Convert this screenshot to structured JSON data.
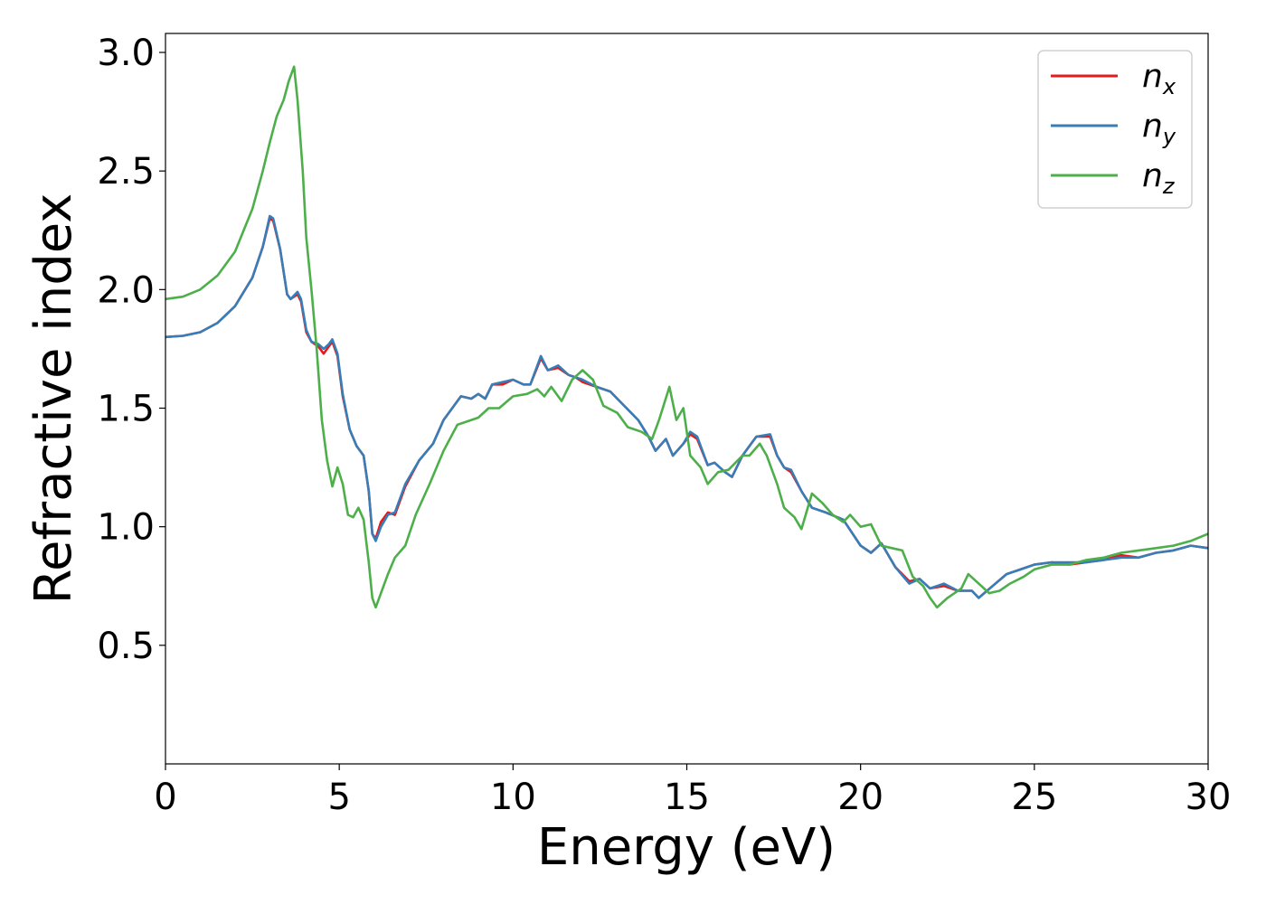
{
  "chart_data": {
    "type": "line",
    "title": "",
    "xlabel": "Energy (eV)",
    "ylabel": "Refractive index",
    "xlim": [
      0,
      30
    ],
    "ylim": [
      0.0,
      3.08
    ],
    "xticks": [
      0,
      5,
      10,
      15,
      20,
      25,
      30
    ],
    "xtick_labels": [
      "0",
      "5",
      "10",
      "15",
      "20",
      "25",
      "30"
    ],
    "yticks": [
      0.5,
      1.0,
      1.5,
      2.0,
      2.5,
      3.0
    ],
    "ytick_labels": [
      "0.5",
      "1.0",
      "1.5",
      "2.0",
      "2.5",
      "3.0"
    ],
    "grid": false,
    "legend_position": "top-right",
    "series": [
      {
        "name": "n",
        "subscript": "x",
        "color": "#e41a1c",
        "points": [
          [
            0,
            1.8
          ],
          [
            0.5,
            1.805
          ],
          [
            1.0,
            1.82
          ],
          [
            1.5,
            1.86
          ],
          [
            2.0,
            1.93
          ],
          [
            2.5,
            2.05
          ],
          [
            2.8,
            2.18
          ],
          [
            3.0,
            2.3
          ],
          [
            3.1,
            2.29
          ],
          [
            3.3,
            2.17
          ],
          [
            3.5,
            1.98
          ],
          [
            3.6,
            1.96
          ],
          [
            3.8,
            1.98
          ],
          [
            3.9,
            1.95
          ],
          [
            4.05,
            1.82
          ],
          [
            4.2,
            1.78
          ],
          [
            4.4,
            1.76
          ],
          [
            4.55,
            1.73
          ],
          [
            4.7,
            1.76
          ],
          [
            4.8,
            1.78
          ],
          [
            4.95,
            1.72
          ],
          [
            5.1,
            1.55
          ],
          [
            5.3,
            1.41
          ],
          [
            5.5,
            1.34
          ],
          [
            5.7,
            1.3
          ],
          [
            5.85,
            1.15
          ],
          [
            5.95,
            0.97
          ],
          [
            6.05,
            0.95
          ],
          [
            6.2,
            1.02
          ],
          [
            6.4,
            1.06
          ],
          [
            6.6,
            1.05
          ],
          [
            6.9,
            1.17
          ],
          [
            7.3,
            1.28
          ],
          [
            7.7,
            1.35
          ],
          [
            8.0,
            1.45
          ],
          [
            8.5,
            1.55
          ],
          [
            8.8,
            1.54
          ],
          [
            9.0,
            1.56
          ],
          [
            9.2,
            1.54
          ],
          [
            9.4,
            1.6
          ],
          [
            9.7,
            1.6
          ],
          [
            10.0,
            1.62
          ],
          [
            10.3,
            1.6
          ],
          [
            10.5,
            1.6
          ],
          [
            10.8,
            1.71
          ],
          [
            11.0,
            1.66
          ],
          [
            11.3,
            1.67
          ],
          [
            11.6,
            1.64
          ],
          [
            11.8,
            1.63
          ],
          [
            12.0,
            1.61
          ],
          [
            12.4,
            1.59
          ],
          [
            12.8,
            1.57
          ],
          [
            13.2,
            1.51
          ],
          [
            13.6,
            1.45
          ],
          [
            13.9,
            1.38
          ],
          [
            14.1,
            1.32
          ],
          [
            14.4,
            1.37
          ],
          [
            14.6,
            1.3
          ],
          [
            14.9,
            1.35
          ],
          [
            15.1,
            1.39
          ],
          [
            15.3,
            1.37
          ],
          [
            15.6,
            1.26
          ],
          [
            15.8,
            1.27
          ],
          [
            16.1,
            1.23
          ],
          [
            16.3,
            1.21
          ],
          [
            16.6,
            1.3
          ],
          [
            17.0,
            1.38
          ],
          [
            17.4,
            1.38
          ],
          [
            17.6,
            1.3
          ],
          [
            17.8,
            1.25
          ],
          [
            18.0,
            1.23
          ],
          [
            18.3,
            1.15
          ],
          [
            18.6,
            1.08
          ],
          [
            19.0,
            1.06
          ],
          [
            19.5,
            1.03
          ],
          [
            20.0,
            0.92
          ],
          [
            20.3,
            0.89
          ],
          [
            20.6,
            0.93
          ],
          [
            21.0,
            0.83
          ],
          [
            21.4,
            0.77
          ],
          [
            21.7,
            0.78
          ],
          [
            22.0,
            0.74
          ],
          [
            22.4,
            0.75
          ],
          [
            22.8,
            0.73
          ],
          [
            23.2,
            0.73
          ],
          [
            23.4,
            0.7
          ],
          [
            23.8,
            0.75
          ],
          [
            24.2,
            0.8
          ],
          [
            24.6,
            0.82
          ],
          [
            25.0,
            0.84
          ],
          [
            25.5,
            0.85
          ],
          [
            26.0,
            0.84
          ],
          [
            26.5,
            0.85
          ],
          [
            27.0,
            0.86
          ],
          [
            27.5,
            0.88
          ],
          [
            28.0,
            0.87
          ],
          [
            28.5,
            0.89
          ],
          [
            29.0,
            0.9
          ],
          [
            29.5,
            0.92
          ],
          [
            30.0,
            0.91
          ]
        ]
      },
      {
        "name": "n",
        "subscript": "y",
        "color": "#377eb8",
        "points": [
          [
            0,
            1.8
          ],
          [
            0.5,
            1.805
          ],
          [
            1.0,
            1.82
          ],
          [
            1.5,
            1.86
          ],
          [
            2.0,
            1.93
          ],
          [
            2.5,
            2.05
          ],
          [
            2.8,
            2.18
          ],
          [
            3.0,
            2.31
          ],
          [
            3.1,
            2.3
          ],
          [
            3.3,
            2.17
          ],
          [
            3.5,
            1.98
          ],
          [
            3.6,
            1.96
          ],
          [
            3.8,
            1.99
          ],
          [
            3.9,
            1.96
          ],
          [
            4.05,
            1.83
          ],
          [
            4.2,
            1.78
          ],
          [
            4.4,
            1.77
          ],
          [
            4.55,
            1.75
          ],
          [
            4.7,
            1.77
          ],
          [
            4.8,
            1.79
          ],
          [
            4.95,
            1.73
          ],
          [
            5.1,
            1.56
          ],
          [
            5.3,
            1.41
          ],
          [
            5.5,
            1.34
          ],
          [
            5.7,
            1.3
          ],
          [
            5.85,
            1.15
          ],
          [
            5.95,
            0.97
          ],
          [
            6.05,
            0.94
          ],
          [
            6.2,
            1.0
          ],
          [
            6.4,
            1.05
          ],
          [
            6.6,
            1.06
          ],
          [
            6.9,
            1.18
          ],
          [
            7.3,
            1.28
          ],
          [
            7.7,
            1.35
          ],
          [
            8.0,
            1.45
          ],
          [
            8.5,
            1.55
          ],
          [
            8.8,
            1.54
          ],
          [
            9.0,
            1.56
          ],
          [
            9.2,
            1.54
          ],
          [
            9.4,
            1.6
          ],
          [
            9.7,
            1.61
          ],
          [
            10.0,
            1.62
          ],
          [
            10.3,
            1.6
          ],
          [
            10.5,
            1.6
          ],
          [
            10.8,
            1.72
          ],
          [
            11.0,
            1.66
          ],
          [
            11.3,
            1.68
          ],
          [
            11.6,
            1.64
          ],
          [
            11.8,
            1.63
          ],
          [
            12.0,
            1.62
          ],
          [
            12.4,
            1.59
          ],
          [
            12.8,
            1.57
          ],
          [
            13.2,
            1.51
          ],
          [
            13.6,
            1.45
          ],
          [
            13.9,
            1.38
          ],
          [
            14.1,
            1.32
          ],
          [
            14.4,
            1.37
          ],
          [
            14.6,
            1.3
          ],
          [
            14.9,
            1.35
          ],
          [
            15.1,
            1.4
          ],
          [
            15.3,
            1.38
          ],
          [
            15.6,
            1.26
          ],
          [
            15.8,
            1.27
          ],
          [
            16.1,
            1.23
          ],
          [
            16.3,
            1.21
          ],
          [
            16.6,
            1.3
          ],
          [
            17.0,
            1.38
          ],
          [
            17.4,
            1.39
          ],
          [
            17.6,
            1.3
          ],
          [
            17.8,
            1.25
          ],
          [
            18.0,
            1.24
          ],
          [
            18.3,
            1.15
          ],
          [
            18.6,
            1.08
          ],
          [
            19.0,
            1.06
          ],
          [
            19.5,
            1.03
          ],
          [
            20.0,
            0.92
          ],
          [
            20.3,
            0.89
          ],
          [
            20.6,
            0.93
          ],
          [
            21.0,
            0.83
          ],
          [
            21.4,
            0.76
          ],
          [
            21.7,
            0.78
          ],
          [
            22.0,
            0.74
          ],
          [
            22.4,
            0.76
          ],
          [
            22.8,
            0.73
          ],
          [
            23.2,
            0.73
          ],
          [
            23.4,
            0.7
          ],
          [
            23.8,
            0.75
          ],
          [
            24.2,
            0.8
          ],
          [
            24.6,
            0.82
          ],
          [
            25.0,
            0.84
          ],
          [
            25.5,
            0.85
          ],
          [
            26.0,
            0.85
          ],
          [
            26.5,
            0.85
          ],
          [
            27.0,
            0.86
          ],
          [
            27.5,
            0.87
          ],
          [
            28.0,
            0.87
          ],
          [
            28.5,
            0.89
          ],
          [
            29.0,
            0.9
          ],
          [
            29.5,
            0.92
          ],
          [
            30.0,
            0.91
          ]
        ]
      },
      {
        "name": "n",
        "subscript": "z",
        "color": "#4daf4a",
        "points": [
          [
            0,
            1.96
          ],
          [
            0.5,
            1.97
          ],
          [
            1.0,
            2.0
          ],
          [
            1.5,
            2.06
          ],
          [
            2.0,
            2.16
          ],
          [
            2.5,
            2.34
          ],
          [
            2.8,
            2.5
          ],
          [
            3.0,
            2.62
          ],
          [
            3.2,
            2.73
          ],
          [
            3.4,
            2.8
          ],
          [
            3.55,
            2.88
          ],
          [
            3.7,
            2.94
          ],
          [
            3.8,
            2.8
          ],
          [
            3.95,
            2.5
          ],
          [
            4.05,
            2.22
          ],
          [
            4.2,
            2.0
          ],
          [
            4.35,
            1.75
          ],
          [
            4.5,
            1.45
          ],
          [
            4.65,
            1.28
          ],
          [
            4.8,
            1.17
          ],
          [
            4.95,
            1.25
          ],
          [
            5.1,
            1.18
          ],
          [
            5.25,
            1.05
          ],
          [
            5.4,
            1.04
          ],
          [
            5.55,
            1.08
          ],
          [
            5.7,
            1.03
          ],
          [
            5.85,
            0.85
          ],
          [
            5.95,
            0.7
          ],
          [
            6.05,
            0.66
          ],
          [
            6.2,
            0.72
          ],
          [
            6.4,
            0.8
          ],
          [
            6.6,
            0.87
          ],
          [
            6.9,
            0.92
          ],
          [
            7.2,
            1.05
          ],
          [
            7.6,
            1.18
          ],
          [
            8.0,
            1.32
          ],
          [
            8.4,
            1.43
          ],
          [
            8.8,
            1.45
          ],
          [
            9.0,
            1.46
          ],
          [
            9.3,
            1.5
          ],
          [
            9.6,
            1.5
          ],
          [
            10.0,
            1.55
          ],
          [
            10.4,
            1.56
          ],
          [
            10.7,
            1.58
          ],
          [
            10.9,
            1.55
          ],
          [
            11.1,
            1.59
          ],
          [
            11.4,
            1.53
          ],
          [
            11.7,
            1.62
          ],
          [
            12.0,
            1.66
          ],
          [
            12.3,
            1.62
          ],
          [
            12.6,
            1.51
          ],
          [
            13.0,
            1.48
          ],
          [
            13.3,
            1.42
          ],
          [
            13.7,
            1.4
          ],
          [
            14.0,
            1.37
          ],
          [
            14.2,
            1.45
          ],
          [
            14.5,
            1.59
          ],
          [
            14.7,
            1.45
          ],
          [
            14.9,
            1.5
          ],
          [
            15.1,
            1.3
          ],
          [
            15.4,
            1.25
          ],
          [
            15.6,
            1.18
          ],
          [
            15.9,
            1.23
          ],
          [
            16.2,
            1.24
          ],
          [
            16.6,
            1.3
          ],
          [
            16.8,
            1.3
          ],
          [
            17.1,
            1.35
          ],
          [
            17.3,
            1.3
          ],
          [
            17.6,
            1.18
          ],
          [
            17.8,
            1.08
          ],
          [
            18.1,
            1.04
          ],
          [
            18.3,
            0.99
          ],
          [
            18.6,
            1.14
          ],
          [
            18.9,
            1.1
          ],
          [
            19.2,
            1.05
          ],
          [
            19.5,
            1.02
          ],
          [
            19.7,
            1.05
          ],
          [
            20.0,
            1.0
          ],
          [
            20.3,
            1.01
          ],
          [
            20.6,
            0.92
          ],
          [
            20.9,
            0.91
          ],
          [
            21.2,
            0.9
          ],
          [
            21.5,
            0.79
          ],
          [
            21.8,
            0.75
          ],
          [
            22.0,
            0.7
          ],
          [
            22.2,
            0.66
          ],
          [
            22.5,
            0.7
          ],
          [
            22.9,
            0.74
          ],
          [
            23.1,
            0.8
          ],
          [
            23.4,
            0.76
          ],
          [
            23.7,
            0.72
          ],
          [
            24.0,
            0.73
          ],
          [
            24.3,
            0.76
          ],
          [
            24.7,
            0.79
          ],
          [
            25.0,
            0.82
          ],
          [
            25.5,
            0.84
          ],
          [
            26.0,
            0.84
          ],
          [
            26.5,
            0.86
          ],
          [
            27.0,
            0.87
          ],
          [
            27.5,
            0.89
          ],
          [
            28.0,
            0.9
          ],
          [
            28.5,
            0.91
          ],
          [
            29.0,
            0.92
          ],
          [
            29.5,
            0.94
          ],
          [
            30.0,
            0.97
          ]
        ]
      }
    ]
  }
}
